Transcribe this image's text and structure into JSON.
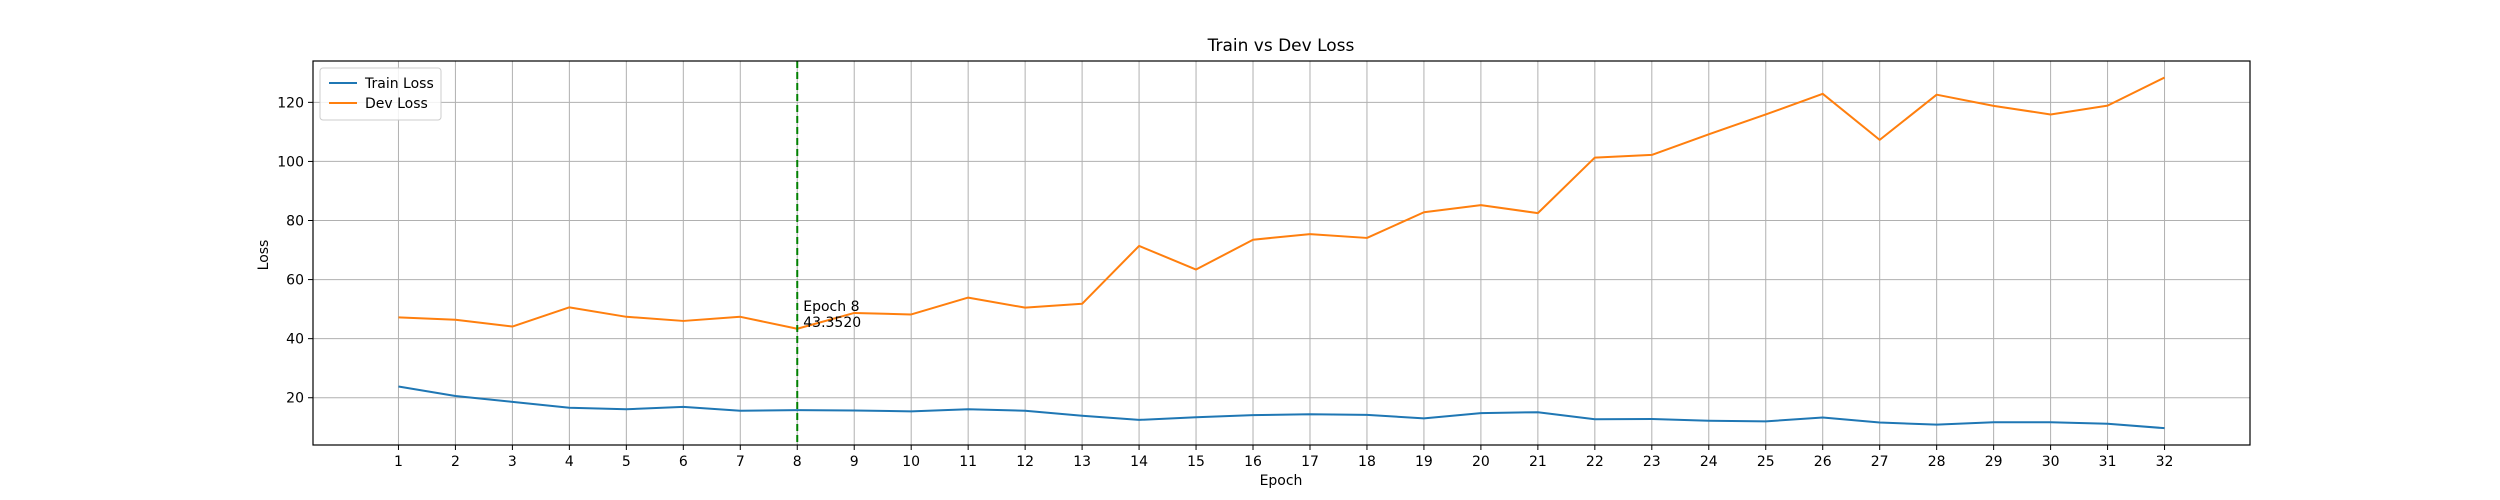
{
  "chart_data": {
    "type": "line",
    "title": "Train vs Dev Loss",
    "xlabel": "Epoch",
    "ylabel": "Loss",
    "x": [
      1,
      2,
      3,
      4,
      5,
      6,
      7,
      8,
      9,
      10,
      11,
      12,
      13,
      14,
      15,
      16,
      17,
      18,
      19,
      20,
      21,
      22,
      23,
      24,
      25,
      26,
      27,
      28,
      29,
      30,
      31,
      32
    ],
    "xlim": [
      -0.5,
      33.5
    ],
    "ylim": [
      4,
      134
    ],
    "yticks": [
      20,
      40,
      60,
      80,
      100,
      120
    ],
    "grid": true,
    "legend_position": "top-left",
    "series": [
      {
        "name": "Train Loss",
        "color": "#1f77b4",
        "values": [
          23.8,
          20.6,
          18.6,
          16.6,
          16.1,
          16.9,
          15.6,
          15.8,
          15.7,
          15.4,
          16.1,
          15.6,
          13.9,
          12.5,
          13.4,
          14.1,
          14.4,
          14.2,
          13.0,
          14.8,
          15.1,
          12.7,
          12.8,
          12.2,
          12.0,
          13.3,
          11.6,
          10.9,
          11.7,
          11.7,
          11.2,
          9.7
        ]
      },
      {
        "name": "Dev Loss",
        "color": "#ff7f0e",
        "values": [
          47.2,
          46.4,
          44.1,
          50.6,
          47.4,
          46.0,
          47.4,
          43.352,
          48.7,
          48.2,
          53.9,
          50.5,
          51.8,
          71.4,
          63.4,
          73.5,
          75.4,
          74.1,
          82.8,
          85.2,
          82.5,
          101.3,
          102.2,
          109.2,
          115.9,
          122.9,
          107.3,
          122.6,
          118.8,
          115.9,
          118.9,
          128.4
        ]
      }
    ],
    "vline": {
      "x": 8,
      "color": "#008000",
      "style": "dashed"
    },
    "annotation": {
      "x": 8,
      "y": 43.352,
      "line1": "Epoch 8",
      "line2": "43.3520"
    }
  }
}
